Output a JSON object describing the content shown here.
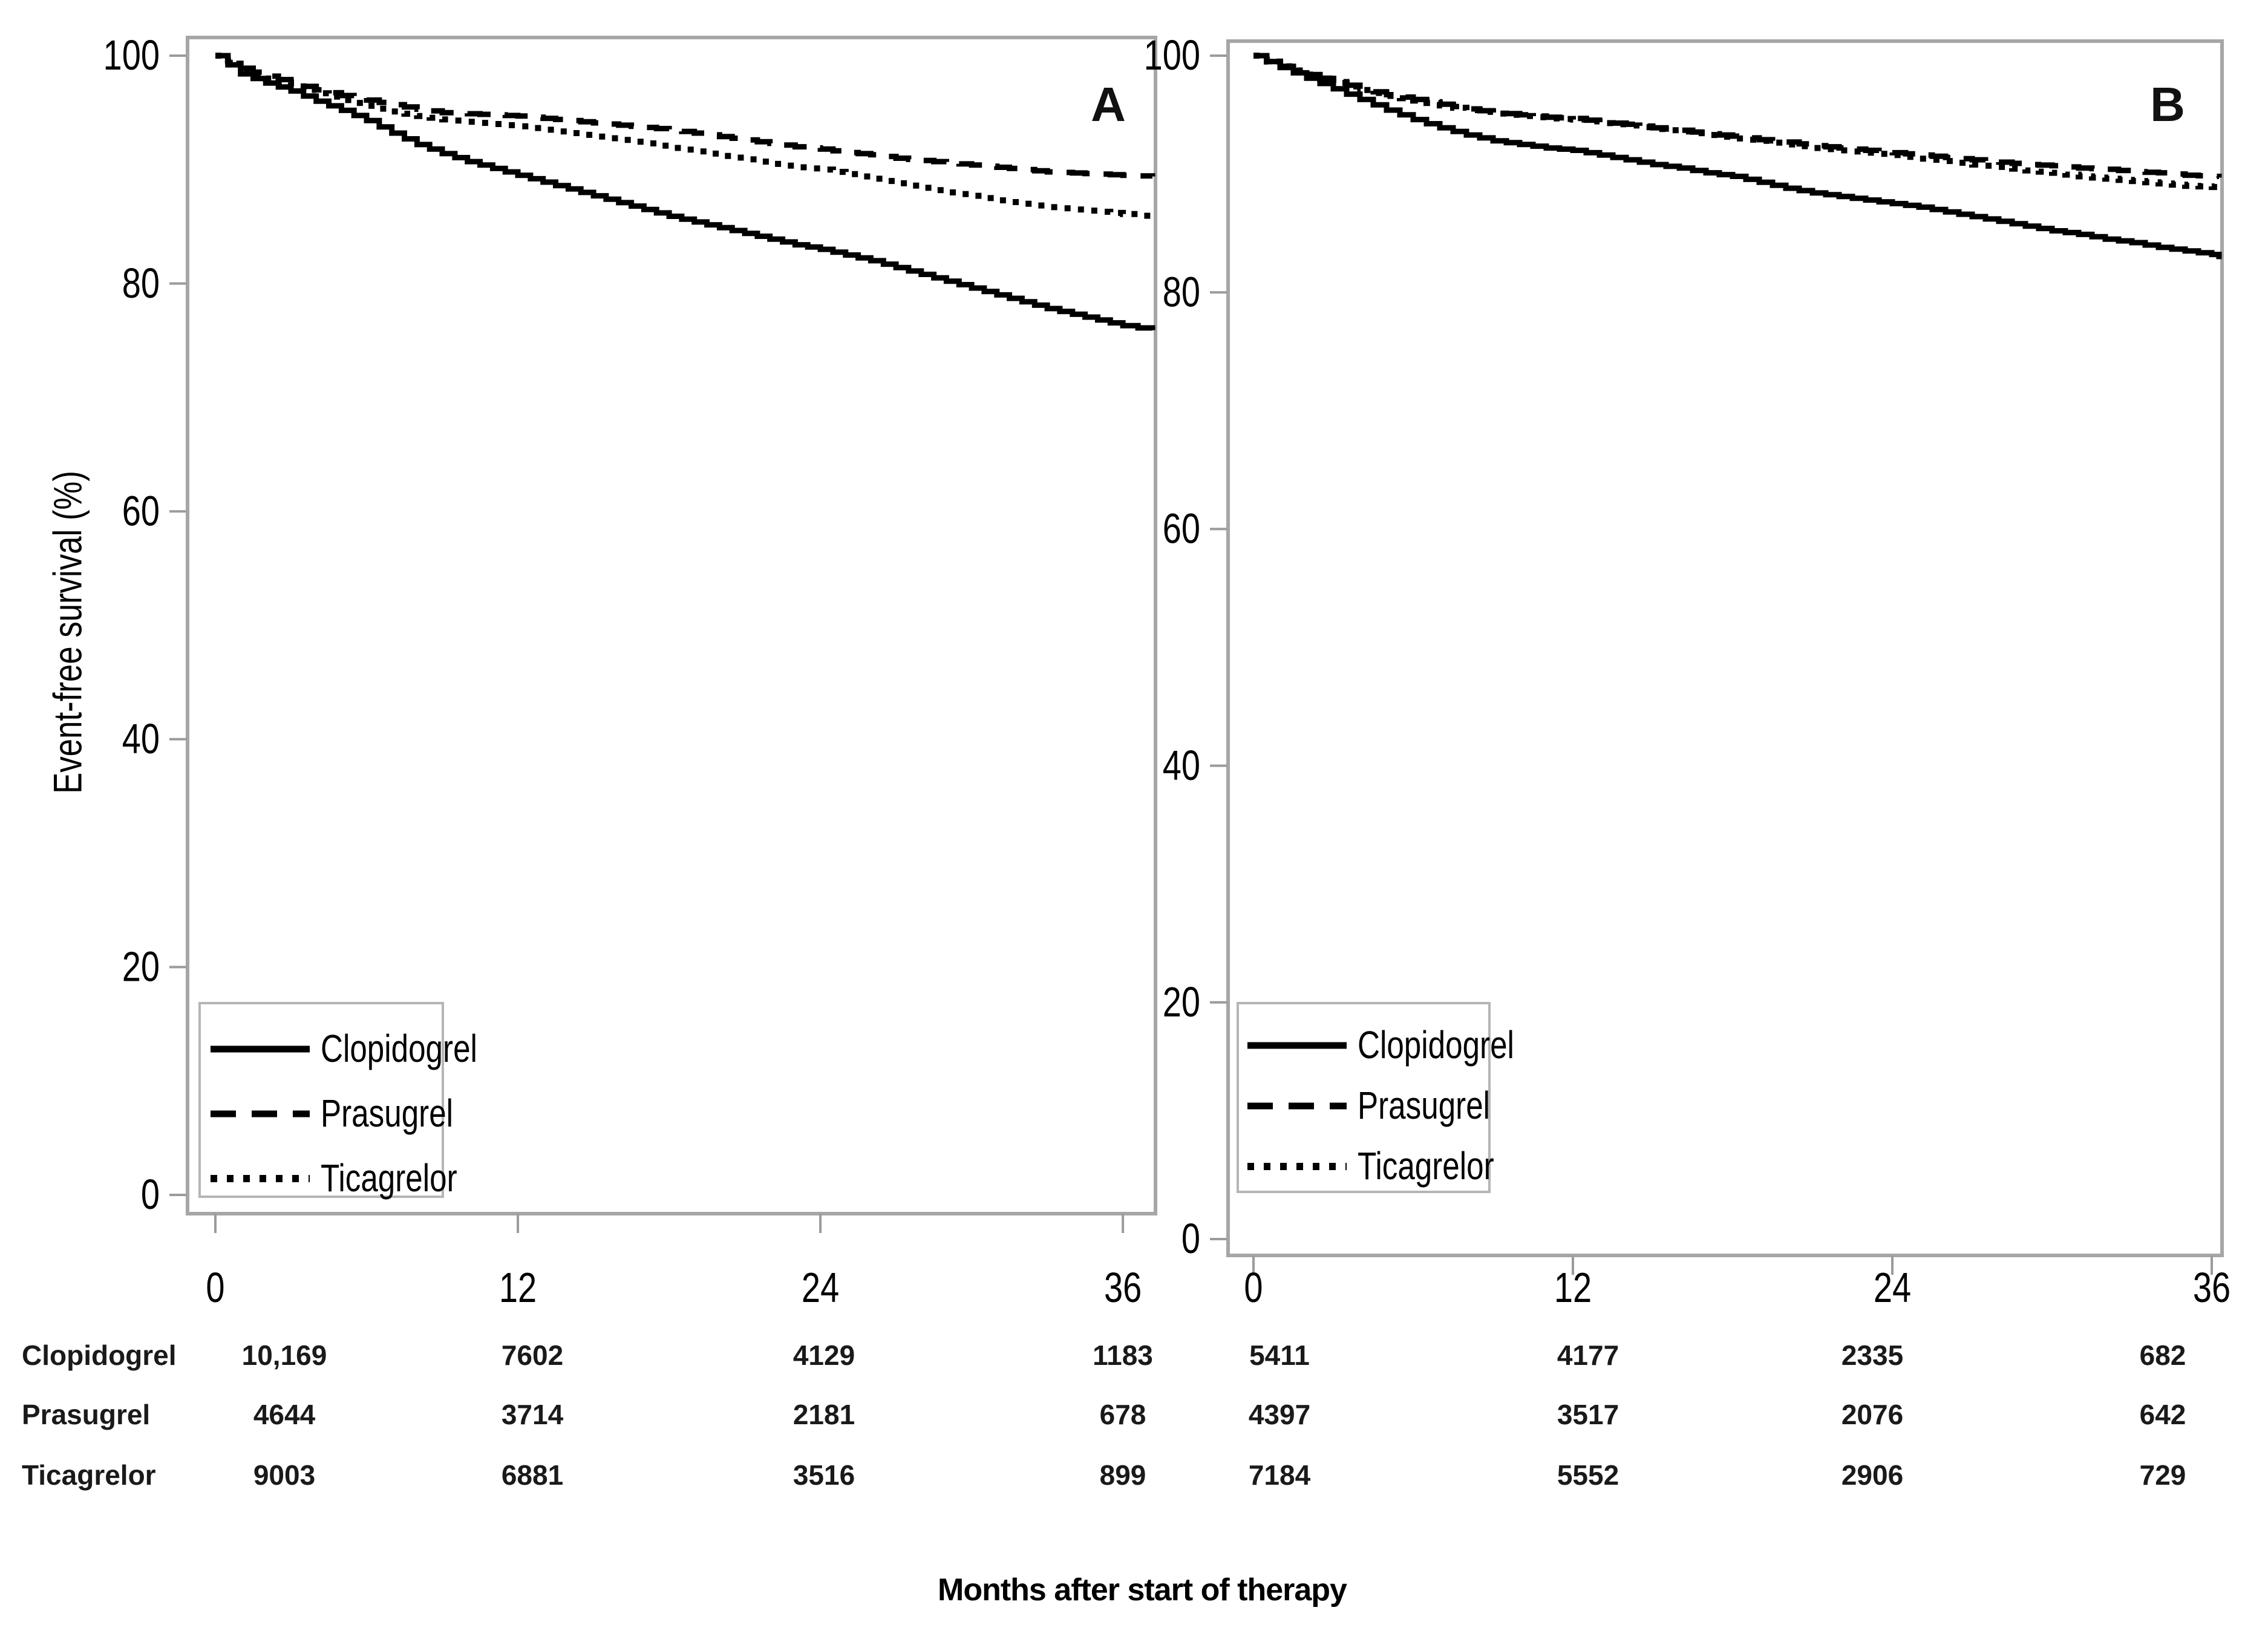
{
  "chart_data": {
    "type": "line",
    "subtype": "kaplan-meier-survival",
    "title": "",
    "xlabel": "Months after start of therapy",
    "ylabel": "Event-free survival (%)",
    "xlim": [
      0,
      37
    ],
    "ylim": [
      0,
      100
    ],
    "x_ticks": [
      0,
      12,
      24,
      36
    ],
    "y_ticks": [
      0,
      20,
      40,
      60,
      80,
      100
    ],
    "grid": false,
    "legend": [
      "Clopidogrel",
      "Prasugrel",
      "Ticagrelor"
    ],
    "line_styles": {
      "Clopidogrel": "solid",
      "Prasugrel": "dashed",
      "Ticagrelor": "dotted"
    },
    "at_risk_months": [
      0,
      12,
      24,
      36
    ],
    "at_risk_row_labels": [
      "Clopidogrel",
      "Prasugrel",
      "Ticagrelor"
    ],
    "panels": [
      {
        "label": "A",
        "series": [
          {
            "name": "Clopidogrel",
            "style": "solid",
            "points": [
              [
                0,
                100
              ],
              [
                0.5,
                99.2
              ],
              [
                1,
                98.4
              ],
              [
                2,
                97.6
              ],
              [
                3,
                96.9
              ],
              [
                4,
                96.0
              ],
              [
                5,
                95.2
              ],
              [
                6,
                94.3
              ],
              [
                7,
                93.2
              ],
              [
                8,
                92.2
              ],
              [
                9,
                91.4
              ],
              [
                10,
                90.7
              ],
              [
                11,
                90.1
              ],
              [
                12,
                89.5
              ],
              [
                13,
                88.9
              ],
              [
                14,
                88.3
              ],
              [
                15,
                87.7
              ],
              [
                16,
                87.1
              ],
              [
                17,
                86.5
              ],
              [
                18,
                85.9
              ],
              [
                19,
                85.4
              ],
              [
                20,
                84.9
              ],
              [
                21,
                84.4
              ],
              [
                22,
                83.9
              ],
              [
                23,
                83.4
              ],
              [
                24,
                83.0
              ],
              [
                25,
                82.5
              ],
              [
                26,
                82.0
              ],
              [
                27,
                81.4
              ],
              [
                28,
                80.8
              ],
              [
                29,
                80.2
              ],
              [
                30,
                79.6
              ],
              [
                31,
                79.0
              ],
              [
                32,
                78.4
              ],
              [
                33,
                77.8
              ],
              [
                34,
                77.3
              ],
              [
                35,
                76.8
              ],
              [
                36,
                76.3
              ],
              [
                37.2,
                75.9
              ]
            ]
          },
          {
            "name": "Prasugrel",
            "style": "dashed",
            "points": [
              [
                0,
                100
              ],
              [
                0.5,
                99.4
              ],
              [
                1,
                98.9
              ],
              [
                2,
                98.2
              ],
              [
                3,
                97.6
              ],
              [
                4,
                97.0
              ],
              [
                5,
                96.5
              ],
              [
                6,
                96.1
              ],
              [
                7,
                95.7
              ],
              [
                8,
                95.3
              ],
              [
                9,
                95.0
              ],
              [
                10,
                94.9
              ],
              [
                11,
                94.8
              ],
              [
                12,
                94.7
              ],
              [
                13,
                94.5
              ],
              [
                14,
                94.3
              ],
              [
                15,
                94.1
              ],
              [
                16,
                93.9
              ],
              [
                17,
                93.7
              ],
              [
                18,
                93.5
              ],
              [
                19,
                93.2
              ],
              [
                20,
                92.9
              ],
              [
                21,
                92.6
              ],
              [
                22,
                92.3
              ],
              [
                23,
                92.0
              ],
              [
                24,
                91.8
              ],
              [
                25,
                91.5
              ],
              [
                26,
                91.3
              ],
              [
                27,
                91.0
              ],
              [
                28,
                90.8
              ],
              [
                29,
                90.6
              ],
              [
                30,
                90.4
              ],
              [
                31,
                90.2
              ],
              [
                32,
                90.0
              ],
              [
                33,
                89.8
              ],
              [
                34,
                89.7
              ],
              [
                35,
                89.6
              ],
              [
                36,
                89.5
              ],
              [
                37.2,
                89.4
              ]
            ]
          },
          {
            "name": "Ticagrelor",
            "style": "dotted",
            "points": [
              [
                0,
                100
              ],
              [
                0.5,
                99.3
              ],
              [
                1,
                98.7
              ],
              [
                2,
                98.0
              ],
              [
                3,
                97.3
              ],
              [
                4,
                96.7
              ],
              [
                5,
                96.1
              ],
              [
                6,
                95.6
              ],
              [
                7,
                95.1
              ],
              [
                8,
                94.7
              ],
              [
                9,
                94.4
              ],
              [
                10,
                94.2
              ],
              [
                11,
                94.0
              ],
              [
                12,
                93.8
              ],
              [
                13,
                93.5
              ],
              [
                14,
                93.2
              ],
              [
                15,
                92.9
              ],
              [
                16,
                92.6
              ],
              [
                17,
                92.3
              ],
              [
                18,
                91.9
              ],
              [
                19,
                91.6
              ],
              [
                20,
                91.2
              ],
              [
                21,
                90.9
              ],
              [
                22,
                90.5
              ],
              [
                23,
                90.2
              ],
              [
                24,
                90.0
              ],
              [
                25,
                89.6
              ],
              [
                26,
                89.2
              ],
              [
                27,
                88.8
              ],
              [
                28,
                88.4
              ],
              [
                29,
                88.0
              ],
              [
                30,
                87.7
              ],
              [
                31,
                87.3
              ],
              [
                32,
                87.0
              ],
              [
                33,
                86.7
              ],
              [
                34,
                86.5
              ],
              [
                35,
                86.3
              ],
              [
                36,
                86.1
              ],
              [
                37.2,
                85.8
              ]
            ]
          }
        ],
        "at_risk": [
          [
            "10,169",
            "7602",
            "4129",
            "1183"
          ],
          [
            "4644",
            "3714",
            "2181",
            "678"
          ],
          [
            "9003",
            "6881",
            "3516",
            "899"
          ]
        ]
      },
      {
        "label": "B",
        "series": [
          {
            "name": "Clopidogrel",
            "style": "solid",
            "points": [
              [
                0,
                100
              ],
              [
                0.5,
                99.5
              ],
              [
                1,
                99.0
              ],
              [
                2,
                98.1
              ],
              [
                3,
                97.2
              ],
              [
                4,
                96.3
              ],
              [
                5,
                95.4
              ],
              [
                6,
                94.6
              ],
              [
                7,
                93.9
              ],
              [
                8,
                93.3
              ],
              [
                9,
                92.8
              ],
              [
                10,
                92.5
              ],
              [
                11,
                92.2
              ],
              [
                12,
                92.0
              ],
              [
                13,
                91.6
              ],
              [
                14,
                91.2
              ],
              [
                15,
                90.8
              ],
              [
                16,
                90.5
              ],
              [
                17,
                90.1
              ],
              [
                18,
                89.8
              ],
              [
                19,
                89.3
              ],
              [
                20,
                88.8
              ],
              [
                21,
                88.4
              ],
              [
                22,
                88.1
              ],
              [
                23,
                87.8
              ],
              [
                24,
                87.5
              ],
              [
                25,
                87.2
              ],
              [
                26,
                86.8
              ],
              [
                27,
                86.4
              ],
              [
                28,
                86.0
              ],
              [
                29,
                85.6
              ],
              [
                30,
                85.2
              ],
              [
                31,
                84.9
              ],
              [
                32,
                84.5
              ],
              [
                33,
                84.2
              ],
              [
                34,
                83.8
              ],
              [
                35,
                83.5
              ],
              [
                36,
                83.2
              ],
              [
                36.5,
                82.8
              ]
            ]
          },
          {
            "name": "Prasugrel",
            "style": "dashed",
            "points": [
              [
                0,
                100
              ],
              [
                0.5,
                99.5
              ],
              [
                1,
                99.1
              ],
              [
                2,
                98.4
              ],
              [
                3,
                97.8
              ],
              [
                4,
                97.2
              ],
              [
                5,
                96.7
              ],
              [
                6,
                96.3
              ],
              [
                7,
                95.9
              ],
              [
                8,
                95.5
              ],
              [
                9,
                95.2
              ],
              [
                10,
                95.0
              ],
              [
                11,
                94.8
              ],
              [
                12,
                94.7
              ],
              [
                13,
                94.4
              ],
              [
                14,
                94.2
              ],
              [
                15,
                93.9
              ],
              [
                16,
                93.7
              ],
              [
                17,
                93.4
              ],
              [
                18,
                93.2
              ],
              [
                19,
                92.9
              ],
              [
                20,
                92.7
              ],
              [
                21,
                92.4
              ],
              [
                22,
                92.2
              ],
              [
                23,
                92.0
              ],
              [
                24,
                91.8
              ],
              [
                25,
                91.6
              ],
              [
                26,
                91.4
              ],
              [
                27,
                91.2
              ],
              [
                28,
                91.0
              ],
              [
                29,
                90.8
              ],
              [
                30,
                90.7
              ],
              [
                31,
                90.5
              ],
              [
                32,
                90.4
              ],
              [
                33,
                90.2
              ],
              [
                34,
                90.1
              ],
              [
                35,
                89.9
              ],
              [
                36,
                89.8
              ],
              [
                36.5,
                89.7
              ]
            ]
          },
          {
            "name": "Ticagrelor",
            "style": "dotted",
            "points": [
              [
                0,
                100
              ],
              [
                0.5,
                99.5
              ],
              [
                1,
                99.1
              ],
              [
                2,
                98.4
              ],
              [
                3,
                97.7
              ],
              [
                4,
                97.1
              ],
              [
                5,
                96.6
              ],
              [
                6,
                96.2
              ],
              [
                7,
                95.8
              ],
              [
                8,
                95.4
              ],
              [
                9,
                95.1
              ],
              [
                10,
                94.9
              ],
              [
                11,
                94.7
              ],
              [
                12,
                94.6
              ],
              [
                13,
                94.3
              ],
              [
                14,
                94.1
              ],
              [
                15,
                93.8
              ],
              [
                16,
                93.6
              ],
              [
                17,
                93.3
              ],
              [
                18,
                93.0
              ],
              [
                19,
                92.8
              ],
              [
                20,
                92.5
              ],
              [
                21,
                92.2
              ],
              [
                22,
                92.0
              ],
              [
                23,
                91.8
              ],
              [
                24,
                91.6
              ],
              [
                25,
                91.3
              ],
              [
                26,
                91.1
              ],
              [
                27,
                90.8
              ],
              [
                28,
                90.6
              ],
              [
                29,
                90.3
              ],
              [
                30,
                90.1
              ],
              [
                31,
                89.8
              ],
              [
                32,
                89.6
              ],
              [
                33,
                89.4
              ],
              [
                34,
                89.2
              ],
              [
                35,
                89.0
              ],
              [
                36,
                88.9
              ],
              [
                36.5,
                88.7
              ]
            ]
          }
        ],
        "at_risk": [
          [
            "5411",
            "4177",
            "2335",
            "682"
          ],
          [
            "4397",
            "3517",
            "2076",
            "642"
          ],
          [
            "7184",
            "5552",
            "2906",
            "729"
          ]
        ]
      }
    ],
    "colors": {
      "curves": "#000000",
      "frame": "#a6a6a6",
      "tick": "#9b9b9b",
      "text": "#000000"
    }
  }
}
